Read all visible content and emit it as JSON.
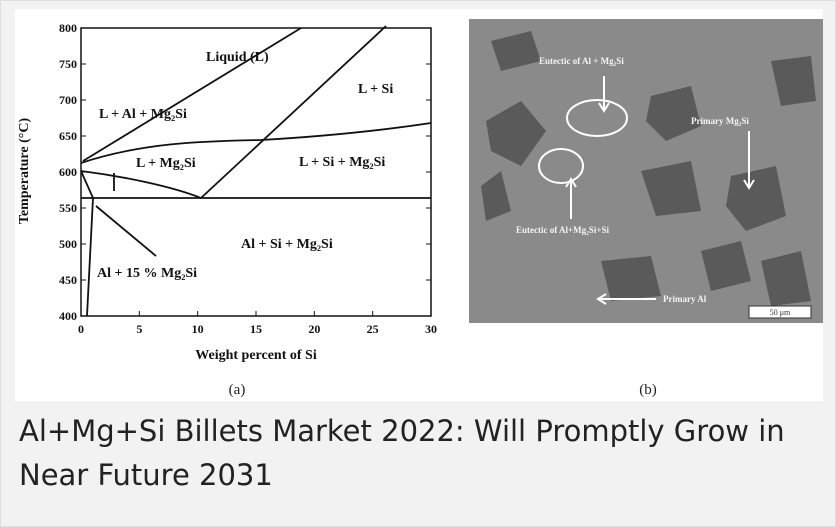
{
  "figure": {
    "panel_a": {
      "y_axis_label": "Temperature (°C)",
      "x_axis_label": "Weight percent of Si",
      "xlim": [
        0,
        30
      ],
      "xticks": [
        0,
        5,
        10,
        15,
        20,
        25,
        30
      ],
      "ylim": [
        400,
        800
      ],
      "yticks": [
        400,
        450,
        500,
        550,
        600,
        650,
        700,
        750,
        800
      ],
      "regions": [
        "Liquid (L)",
        "L + Si",
        "L + Al + Mg₂Si",
        "L + Mg₂Si",
        "L + Si + Mg₂Si",
        "Al + Si + Mg₂Si",
        "Al + 15 % Mg₂Si"
      ],
      "label": "(a)"
    },
    "panel_b": {
      "labels": [
        "Eutectic of Al + Mg₂Si",
        "Primary Mg₂Si",
        "Eutectic of Al+Mg₂Si+Si",
        "Primary Al",
        "50 μm"
      ],
      "label": "(b)"
    }
  },
  "caption": "Al+Mg+Si Billets Market 2022: Will Promptly Grow in Near Future 2031"
}
